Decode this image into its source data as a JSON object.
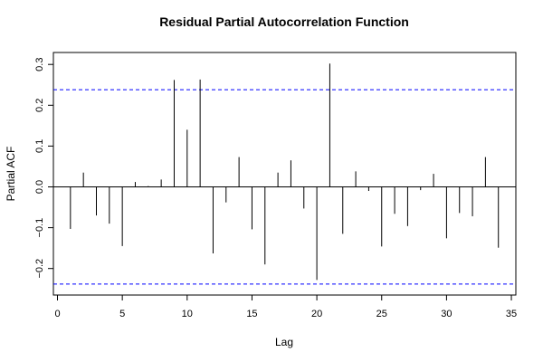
{
  "chart_data": {
    "type": "bar",
    "title": "Residual Partial Autocorrelation Function",
    "xlabel": "Lag",
    "ylabel": "Partial ACF",
    "xlim": [
      0,
      35
    ],
    "ylim": [
      -0.26,
      0.33
    ],
    "x_ticks": [
      0,
      5,
      10,
      15,
      20,
      25,
      30,
      35
    ],
    "y_ticks": [
      -0.2,
      -0.1,
      0.0,
      0.1,
      0.2,
      0.3
    ],
    "y_tick_labels": [
      "−0.2",
      "−0.1",
      "0.0",
      "0.1",
      "0.2",
      "0.3"
    ],
    "confidence_limit": 0.238,
    "lags": [
      1,
      2,
      3,
      4,
      5,
      6,
      7,
      8,
      9,
      10,
      11,
      12,
      13,
      14,
      15,
      16,
      17,
      18,
      19,
      20,
      21,
      22,
      23,
      24,
      25,
      26,
      27,
      28,
      29,
      30,
      31,
      32,
      33,
      34
    ],
    "values": [
      -0.103,
      0.035,
      -0.07,
      -0.09,
      -0.145,
      0.012,
      0.002,
      0.018,
      0.262,
      0.14,
      0.263,
      -0.163,
      -0.038,
      0.073,
      -0.104,
      -0.19,
      0.035,
      0.065,
      -0.053,
      -0.228,
      0.302,
      -0.115,
      0.038,
      -0.01,
      -0.146,
      -0.066,
      -0.096,
      -0.008,
      0.032,
      -0.126,
      -0.064,
      -0.072,
      0.073,
      -0.149
    ],
    "colors": {
      "spike": "#000000",
      "limit": "#0000ff",
      "zero_line": "#000000"
    },
    "grid": false
  }
}
